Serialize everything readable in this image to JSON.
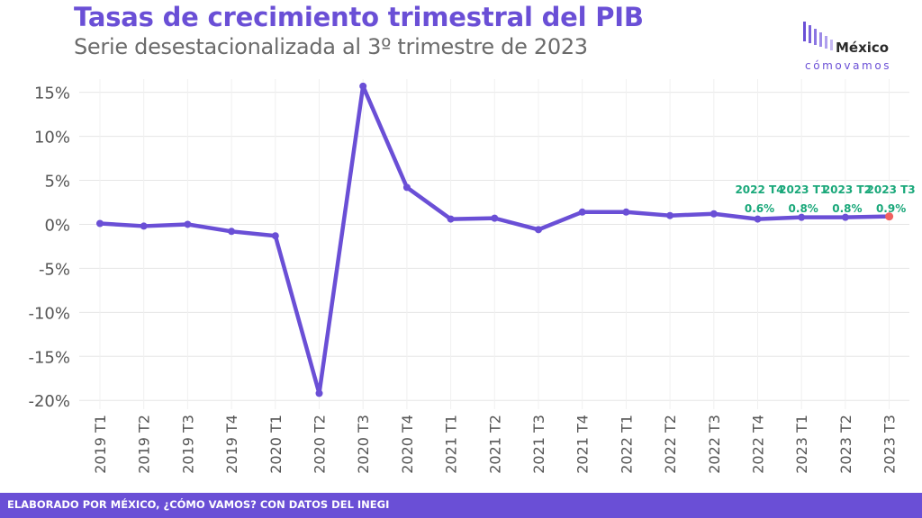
{
  "header": {
    "title": "Tasas de crecimiento trimestral del PIB",
    "subtitle": "Serie desestacionalizada al 3º trimestre de 2023"
  },
  "logo": {
    "word": "México",
    "tagline": "cómovamos",
    "color": "#6a4fd6"
  },
  "footer": {
    "text": "ELABORADO POR MÉXICO, ¿CÓMO VAMOS? CON DATOS DEL INEGI",
    "background": "#6a4fd6"
  },
  "chart_data": {
    "type": "line",
    "title": "Tasas de crecimiento trimestral del PIB",
    "subtitle": "Serie desestacionalizada al 3º trimestre de 2023",
    "xlabel": "",
    "ylabel": "",
    "categories": [
      "2019 T1",
      "2019 T2",
      "2019 T3",
      "2019 T4",
      "2020 T1",
      "2020 T2",
      "2020 T3",
      "2020 T4",
      "2021 T1",
      "2021 T2",
      "2021 T3",
      "2021 T4",
      "2022 T1",
      "2022 T2",
      "2022 T3",
      "2022 T4",
      "2023 T1",
      "2023 T2",
      "2023 T3"
    ],
    "series": [
      {
        "values": [
          0.1,
          -0.2,
          0.0,
          -0.8,
          -1.3,
          -19.2,
          15.7,
          4.2,
          0.6,
          0.7,
          -0.6,
          1.4,
          1.4,
          1.0,
          1.2,
          0.6,
          0.8,
          0.8,
          0.9
        ],
        "color": "#6a4fd6"
      }
    ],
    "yticks": [
      "15%",
      "10%",
      "5%",
      "0%",
      "-5%",
      "-10%",
      "-15%",
      "-20%"
    ],
    "ytick_values": [
      15,
      10,
      5,
      0,
      -5,
      -10,
      -15,
      -20
    ],
    "ylim": [
      -21,
      16.5
    ],
    "grid": true,
    "annotations": [
      {
        "category": "2022 T4",
        "label": "2022 T4",
        "value_label": "0.6%"
      },
      {
        "category": "2023 T1",
        "label": "2023 T1",
        "value_label": "0.8%"
      },
      {
        "category": "2023 T2",
        "label": "2023 T2",
        "value_label": "0.8%"
      },
      {
        "category": "2023 T3",
        "label": "2023 T3",
        "value_label": "0.9%"
      }
    ],
    "annotation_color": "#1aa87a",
    "highlight_last_color": "#f06060"
  }
}
